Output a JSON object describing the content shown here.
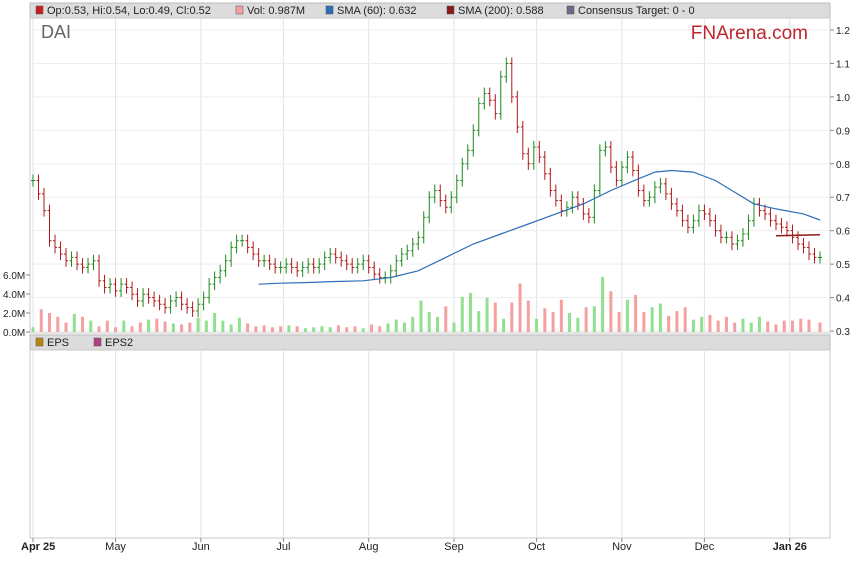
{
  "legend_top": [
    {
      "label": "Op:0.53, Hi:0.54, Lo:0.49, Cl:0.52",
      "color": "#c81e1e"
    },
    {
      "label": "Vol: 0.987M",
      "color": "#f4a0a0"
    },
    {
      "label": "SMA (60): 0.632",
      "color": "#2d6fb8"
    },
    {
      "label": "SMA (200): 0.588",
      "color": "#8b1a1a"
    },
    {
      "label": "Consensus Target: 0 - 0",
      "color": "#6a6a8a"
    }
  ],
  "legend_bottom": [
    {
      "label": "EPS",
      "color": "#b8860b"
    },
    {
      "label": "EPS2",
      "color": "#b04080"
    }
  ],
  "ticker": "DAI",
  "brand": "FNArena.com",
  "chart_data": {
    "type": "candlestick",
    "price_axis": {
      "min": 0.3,
      "max": 1.2,
      "ticks": [
        "1.2",
        "1.1",
        "1.0",
        "0.9",
        "0.8",
        "0.7",
        "0.6",
        "0.5",
        "0.4",
        "0.3"
      ],
      "tick_values": [
        1.2,
        1.1,
        1.0,
        0.9,
        0.8,
        0.7,
        0.6,
        0.5,
        0.4,
        0.3
      ]
    },
    "volume_axis": {
      "ticks": [
        "6.0M",
        "4.0M",
        "2.0M",
        "0.0M"
      ],
      "tick_values": [
        6,
        4,
        2,
        0
      ],
      "unit": "M"
    },
    "months": [
      {
        "label": "Apr 25",
        "day": 0,
        "bold": true
      },
      {
        "label": "May",
        "day": 30,
        "bold": false
      },
      {
        "label": "Jun",
        "day": 61,
        "bold": false
      },
      {
        "label": "Jul",
        "day": 91,
        "bold": false
      },
      {
        "label": "Aug",
        "day": 122,
        "bold": false
      },
      {
        "label": "Sep",
        "day": 153,
        "bold": false
      },
      {
        "label": "Oct",
        "day": 183,
        "bold": false
      },
      {
        "label": "Nov",
        "day": 214,
        "bold": false
      },
      {
        "label": "Dec",
        "day": 244,
        "bold": false
      },
      {
        "label": "Jan 26",
        "day": 275,
        "bold": true
      }
    ],
    "close_series": [
      [
        0,
        0.75
      ],
      [
        2,
        0.71
      ],
      [
        4,
        0.66
      ],
      [
        6,
        0.57
      ],
      [
        8,
        0.55
      ],
      [
        10,
        0.53
      ],
      [
        12,
        0.51
      ],
      [
        14,
        0.52
      ],
      [
        16,
        0.5
      ],
      [
        18,
        0.49
      ],
      [
        20,
        0.5
      ],
      [
        22,
        0.51
      ],
      [
        24,
        0.45
      ],
      [
        26,
        0.43
      ],
      [
        28,
        0.44
      ],
      [
        30,
        0.42
      ],
      [
        32,
        0.44
      ],
      [
        34,
        0.43
      ],
      [
        36,
        0.41
      ],
      [
        38,
        0.39
      ],
      [
        40,
        0.41
      ],
      [
        42,
        0.4
      ],
      [
        44,
        0.39
      ],
      [
        46,
        0.38
      ],
      [
        48,
        0.37
      ],
      [
        50,
        0.39
      ],
      [
        52,
        0.4
      ],
      [
        54,
        0.38
      ],
      [
        56,
        0.37
      ],
      [
        58,
        0.36
      ],
      [
        60,
        0.38
      ],
      [
        62,
        0.4
      ],
      [
        64,
        0.44
      ],
      [
        66,
        0.46
      ],
      [
        68,
        0.48
      ],
      [
        70,
        0.51
      ],
      [
        72,
        0.55
      ],
      [
        74,
        0.57
      ],
      [
        76,
        0.57
      ],
      [
        78,
        0.55
      ],
      [
        80,
        0.53
      ],
      [
        82,
        0.51
      ],
      [
        84,
        0.51
      ],
      [
        86,
        0.5
      ],
      [
        88,
        0.49
      ],
      [
        90,
        0.49
      ],
      [
        92,
        0.5
      ],
      [
        94,
        0.49
      ],
      [
        96,
        0.48
      ],
      [
        98,
        0.49
      ],
      [
        100,
        0.5
      ],
      [
        102,
        0.49
      ],
      [
        104,
        0.5
      ],
      [
        106,
        0.52
      ],
      [
        108,
        0.53
      ],
      [
        110,
        0.52
      ],
      [
        112,
        0.51
      ],
      [
        114,
        0.5
      ],
      [
        116,
        0.49
      ],
      [
        118,
        0.5
      ],
      [
        120,
        0.51
      ],
      [
        122,
        0.49
      ],
      [
        124,
        0.47
      ],
      [
        126,
        0.46
      ],
      [
        128,
        0.46
      ],
      [
        130,
        0.48
      ],
      [
        132,
        0.51
      ],
      [
        134,
        0.53
      ],
      [
        136,
        0.54
      ],
      [
        138,
        0.56
      ],
      [
        140,
        0.58
      ],
      [
        142,
        0.64
      ],
      [
        144,
        0.7
      ],
      [
        146,
        0.72
      ],
      [
        148,
        0.69
      ],
      [
        150,
        0.67
      ],
      [
        152,
        0.7
      ],
      [
        154,
        0.75
      ],
      [
        156,
        0.8
      ],
      [
        158,
        0.84
      ],
      [
        160,
        0.9
      ],
      [
        162,
        0.98
      ],
      [
        164,
        1.01
      ],
      [
        166,
        0.99
      ],
      [
        168,
        0.95
      ],
      [
        170,
        1.06
      ],
      [
        172,
        1.1
      ],
      [
        174,
        1.0
      ],
      [
        176,
        0.91
      ],
      [
        178,
        0.83
      ],
      [
        180,
        0.8
      ],
      [
        182,
        0.85
      ],
      [
        184,
        0.82
      ],
      [
        186,
        0.77
      ],
      [
        188,
        0.72
      ],
      [
        190,
        0.69
      ],
      [
        192,
        0.66
      ],
      [
        194,
        0.67
      ],
      [
        196,
        0.7
      ],
      [
        198,
        0.68
      ],
      [
        200,
        0.65
      ],
      [
        202,
        0.64
      ],
      [
        204,
        0.72
      ],
      [
        206,
        0.84
      ],
      [
        208,
        0.85
      ],
      [
        210,
        0.79
      ],
      [
        212,
        0.75
      ],
      [
        214,
        0.79
      ],
      [
        216,
        0.82
      ],
      [
        218,
        0.78
      ],
      [
        220,
        0.72
      ],
      [
        222,
        0.69
      ],
      [
        224,
        0.7
      ],
      [
        226,
        0.73
      ],
      [
        228,
        0.74
      ],
      [
        230,
        0.71
      ],
      [
        232,
        0.68
      ],
      [
        234,
        0.66
      ],
      [
        236,
        0.63
      ],
      [
        238,
        0.61
      ],
      [
        240,
        0.63
      ],
      [
        242,
        0.66
      ],
      [
        244,
        0.65
      ],
      [
        246,
        0.63
      ],
      [
        248,
        0.6
      ],
      [
        250,
        0.58
      ],
      [
        252,
        0.58
      ],
      [
        254,
        0.56
      ],
      [
        256,
        0.57
      ],
      [
        258,
        0.59
      ],
      [
        260,
        0.63
      ],
      [
        262,
        0.68
      ],
      [
        264,
        0.66
      ],
      [
        266,
        0.65
      ],
      [
        268,
        0.63
      ],
      [
        270,
        0.62
      ],
      [
        272,
        0.61
      ],
      [
        274,
        0.6
      ],
      [
        276,
        0.58
      ],
      [
        278,
        0.56
      ],
      [
        280,
        0.55
      ],
      [
        282,
        0.53
      ],
      [
        284,
        0.52
      ],
      [
        286,
        0.52
      ]
    ],
    "sma60": [
      [
        82,
        0.44
      ],
      [
        90,
        0.443
      ],
      [
        100,
        0.445
      ],
      [
        110,
        0.448
      ],
      [
        120,
        0.45
      ],
      [
        130,
        0.46
      ],
      [
        140,
        0.48
      ],
      [
        150,
        0.52
      ],
      [
        160,
        0.56
      ],
      [
        170,
        0.59
      ],
      [
        180,
        0.62
      ],
      [
        190,
        0.65
      ],
      [
        200,
        0.68
      ],
      [
        210,
        0.72
      ],
      [
        220,
        0.755
      ],
      [
        226,
        0.775
      ],
      [
        232,
        0.78
      ],
      [
        240,
        0.775
      ],
      [
        248,
        0.75
      ],
      [
        256,
        0.71
      ],
      [
        262,
        0.68
      ],
      [
        270,
        0.665
      ],
      [
        280,
        0.65
      ],
      [
        286,
        0.632
      ]
    ],
    "sma200": [
      [
        270,
        0.585
      ],
      [
        286,
        0.588
      ]
    ],
    "volume": [
      [
        0,
        0.5
      ],
      [
        3,
        2.4
      ],
      [
        6,
        2.0
      ],
      [
        9,
        1.6
      ],
      [
        12,
        1.0
      ],
      [
        15,
        1.9
      ],
      [
        18,
        1.6
      ],
      [
        21,
        1.2
      ],
      [
        24,
        0.6
      ],
      [
        27,
        1.2
      ],
      [
        30,
        0.5
      ],
      [
        33,
        1.2
      ],
      [
        36,
        0.6
      ],
      [
        39,
        1.0
      ],
      [
        42,
        1.3
      ],
      [
        45,
        1.4
      ],
      [
        48,
        1.1
      ],
      [
        51,
        0.9
      ],
      [
        54,
        0.8
      ],
      [
        57,
        1.0
      ],
      [
        60,
        1.5
      ],
      [
        63,
        1.2
      ],
      [
        66,
        2.0
      ],
      [
        69,
        1.2
      ],
      [
        72,
        0.8
      ],
      [
        75,
        1.5
      ],
      [
        78,
        0.9
      ],
      [
        81,
        0.6
      ],
      [
        84,
        0.7
      ],
      [
        87,
        0.5
      ],
      [
        90,
        0.6
      ],
      [
        93,
        0.7
      ],
      [
        96,
        0.6
      ],
      [
        99,
        0.4
      ],
      [
        102,
        0.5
      ],
      [
        105,
        0.6
      ],
      [
        108,
        0.5
      ],
      [
        111,
        0.7
      ],
      [
        114,
        0.5
      ],
      [
        117,
        0.6
      ],
      [
        120,
        0.4
      ],
      [
        123,
        0.8
      ],
      [
        126,
        0.6
      ],
      [
        129,
        0.9
      ],
      [
        132,
        1.3
      ],
      [
        135,
        1.0
      ],
      [
        138,
        1.6
      ],
      [
        141,
        3.3
      ],
      [
        144,
        2.1
      ],
      [
        147,
        1.6
      ],
      [
        150,
        2.7
      ],
      [
        153,
        1.0
      ],
      [
        156,
        3.7
      ],
      [
        159,
        4.1
      ],
      [
        162,
        2.2
      ],
      [
        165,
        3.6
      ],
      [
        168,
        3.1
      ],
      [
        171,
        1.4
      ],
      [
        174,
        3.1
      ],
      [
        177,
        5.1
      ],
      [
        180,
        3.3
      ],
      [
        183,
        1.4
      ],
      [
        186,
        2.5
      ],
      [
        189,
        2.1
      ],
      [
        192,
        3.4
      ],
      [
        195,
        2.0
      ],
      [
        198,
        1.5
      ],
      [
        201,
        2.6
      ],
      [
        204,
        2.7
      ],
      [
        207,
        5.8
      ],
      [
        210,
        4.3
      ],
      [
        213,
        2.1
      ],
      [
        216,
        3.4
      ],
      [
        219,
        3.9
      ],
      [
        222,
        2.1
      ],
      [
        225,
        2.6
      ],
      [
        228,
        3.0
      ],
      [
        231,
        1.7
      ],
      [
        234,
        2.2
      ],
      [
        237,
        2.6
      ],
      [
        240,
        1.3
      ],
      [
        243,
        1.6
      ],
      [
        246,
        1.8
      ],
      [
        249,
        1.2
      ],
      [
        252,
        1.6
      ],
      [
        255,
        1.0
      ],
      [
        258,
        1.4
      ],
      [
        261,
        1.0
      ],
      [
        264,
        1.6
      ],
      [
        267,
        1.1
      ],
      [
        270,
        0.8
      ],
      [
        273,
        1.2
      ],
      [
        276,
        1.2
      ],
      [
        279,
        1.4
      ],
      [
        282,
        1.3
      ],
      [
        286,
        1.0
      ]
    ]
  }
}
